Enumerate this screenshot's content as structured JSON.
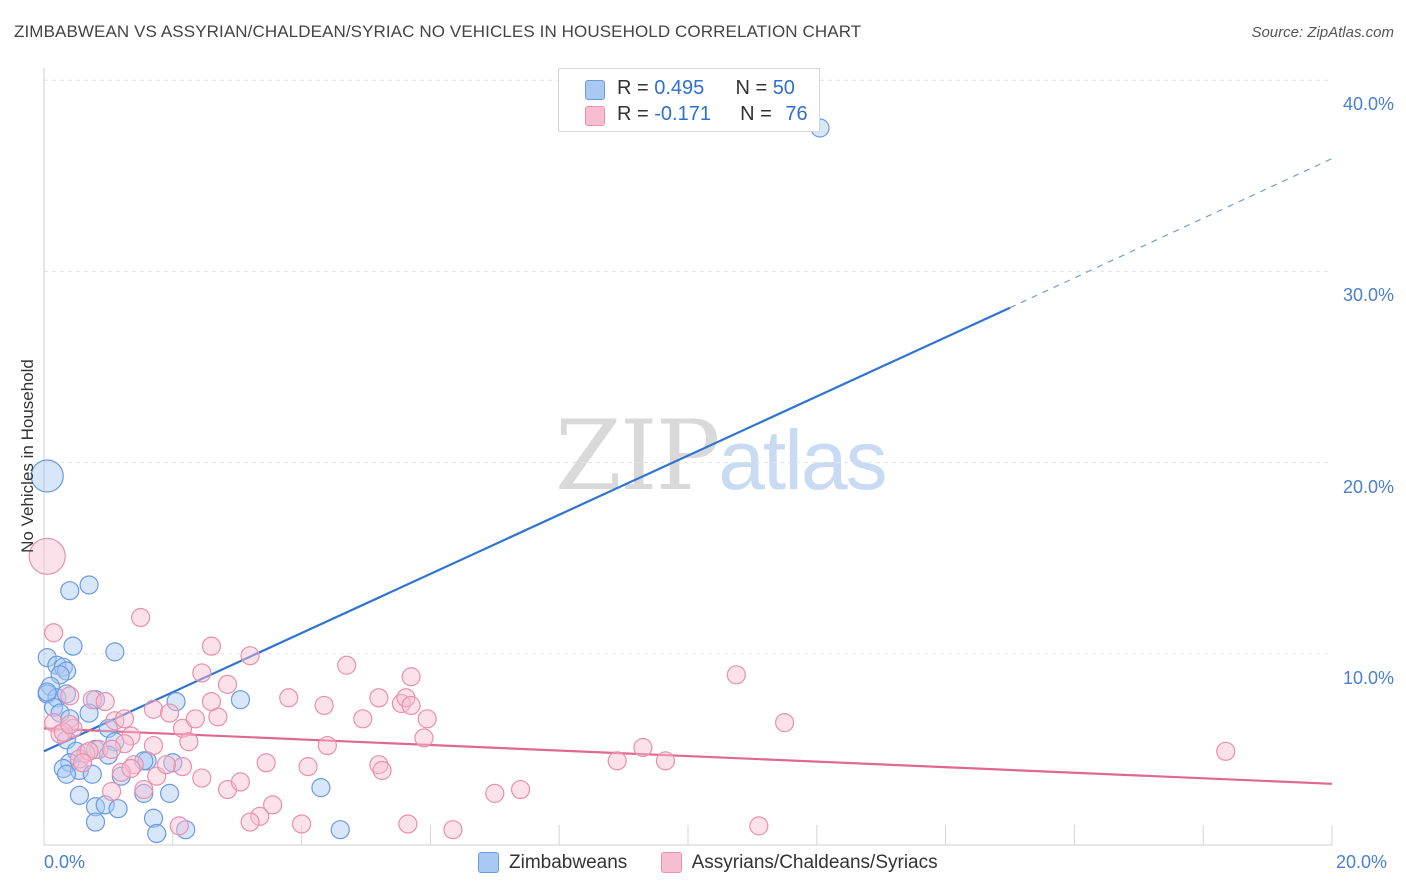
{
  "header": {
    "title": "ZIMBABWEAN VS ASSYRIAN/CHALDEAN/SYRIAC NO VEHICLES IN HOUSEHOLD CORRELATION CHART",
    "source": "Source: ZipAtlas.com"
  },
  "watermark": {
    "zip": "ZIP",
    "atlas": "atlas"
  },
  "legend_top": {
    "rows": [
      {
        "r_label": "R = ",
        "r_value": "0.495",
        "n_label": "N = ",
        "n_value": "50"
      },
      {
        "r_label": "R = ",
        "r_value": "-0.171",
        "n_label": "N = ",
        "n_value": "76"
      }
    ]
  },
  "legend_bottom": {
    "items": [
      "Zimbabweans",
      "Assyrians/Chaldeans/Syriacs"
    ]
  },
  "colors": {
    "blue_fill": "#a9c8f2",
    "blue_stroke": "#6a9be0",
    "blue_line": "#2f74d0",
    "pink_fill": "#f6bfd1",
    "pink_stroke": "#ea8fae",
    "pink_line": "#e0688f",
    "grid": "#e3e3e3",
    "tick_label": "#4a7fd0"
  },
  "chart_data": {
    "type": "scatter",
    "title": "ZIMBABWEAN VS ASSYRIAN/CHALDEAN/SYRIAC NO VEHICLES IN HOUSEHOLD CORRELATION CHART",
    "xlabel": "",
    "ylabel": "No Vehicles in Household",
    "xlim": [
      0,
      20
    ],
    "ylim": [
      0,
      40
    ],
    "x_tick_labels": [
      "0.0%",
      "20.0%"
    ],
    "y_tick_labels": [
      "10.0%",
      "20.0%",
      "30.0%",
      "40.0%"
    ],
    "y_ticks": [
      10,
      20,
      30,
      40
    ],
    "grid": true,
    "legend": "top-center",
    "series": [
      {
        "name": "Zimbabweans",
        "color": "blue",
        "r": 0.495,
        "n": 50,
        "trend": {
          "x0": 0,
          "y0": 4.9,
          "x1": 15.0,
          "y1": 28.1,
          "dashed_to_x": 20.0,
          "dashed_to_y": 35.9
        },
        "points": [
          [
            0.05,
            19.3,
            16
          ],
          [
            0.7,
            13.6,
            9
          ],
          [
            0.4,
            13.3,
            9
          ],
          [
            0.45,
            10.4,
            9
          ],
          [
            1.1,
            10.1,
            9
          ],
          [
            0.05,
            9.8,
            9
          ],
          [
            0.2,
            9.4,
            9
          ],
          [
            0.3,
            9.3,
            9
          ],
          [
            0.35,
            9.1,
            9
          ],
          [
            0.25,
            8.9,
            9
          ],
          [
            0.1,
            8.3,
            9
          ],
          [
            0.05,
            7.9,
            9
          ],
          [
            0.2,
            7.7,
            9
          ],
          [
            0.35,
            7.9,
            9
          ],
          [
            0.8,
            7.6,
            9
          ],
          [
            2.05,
            7.5,
            9
          ],
          [
            3.05,
            7.6,
            9
          ],
          [
            0.15,
            7.2,
            9
          ],
          [
            0.25,
            6.9,
            9
          ],
          [
            0.7,
            6.9,
            9
          ],
          [
            0.4,
            6.6,
            9
          ],
          [
            1.0,
            6.1,
            9
          ],
          [
            0.35,
            5.5,
            9
          ],
          [
            1.1,
            5.4,
            9
          ],
          [
            0.8,
            5.0,
            9
          ],
          [
            0.5,
            4.9,
            9
          ],
          [
            1.0,
            4.7,
            9
          ],
          [
            1.6,
            4.4,
            9
          ],
          [
            2.0,
            4.3,
            9
          ],
          [
            0.4,
            4.3,
            9
          ],
          [
            0.3,
            4.0,
            9
          ],
          [
            0.55,
            3.9,
            9
          ],
          [
            0.75,
            3.7,
            9
          ],
          [
            1.2,
            3.6,
            9
          ],
          [
            0.35,
            3.7,
            9
          ],
          [
            4.3,
            3.0,
            9
          ],
          [
            1.55,
            2.7,
            9
          ],
          [
            1.95,
            2.7,
            9
          ],
          [
            0.55,
            2.6,
            9
          ],
          [
            0.8,
            2.0,
            9
          ],
          [
            0.95,
            2.1,
            9
          ],
          [
            1.15,
            1.9,
            9
          ],
          [
            0.8,
            1.2,
            9
          ],
          [
            1.7,
            1.4,
            9
          ],
          [
            1.75,
            0.6,
            9
          ],
          [
            2.2,
            0.8,
            9
          ],
          [
            4.6,
            0.8,
            9
          ],
          [
            0.05,
            8.0,
            9
          ],
          [
            1.55,
            4.4,
            9
          ],
          [
            12.05,
            37.5,
            9
          ]
        ]
      },
      {
        "name": "Assyrians/Chaldeans/Syriacs",
        "color": "pink",
        "r": -0.171,
        "n": 76,
        "trend": {
          "x0": 0,
          "y0": 6.1,
          "x1": 20.0,
          "y1": 3.2
        },
        "points": [
          [
            0.05,
            15.1,
            18
          ],
          [
            0.15,
            11.1,
            9
          ],
          [
            1.5,
            11.9,
            9
          ],
          [
            2.6,
            10.4,
            9
          ],
          [
            3.2,
            9.9,
            9
          ],
          [
            4.7,
            9.4,
            9
          ],
          [
            2.45,
            9.0,
            9
          ],
          [
            5.7,
            8.8,
            9
          ],
          [
            10.75,
            8.9,
            9
          ],
          [
            2.85,
            8.4,
            9
          ],
          [
            0.4,
            7.8,
            9
          ],
          [
            0.75,
            7.6,
            9
          ],
          [
            1.1,
            6.5,
            9
          ],
          [
            1.7,
            7.1,
            9
          ],
          [
            1.95,
            6.9,
            9
          ],
          [
            3.8,
            7.7,
            9
          ],
          [
            4.35,
            7.3,
            9
          ],
          [
            5.2,
            7.7,
            9
          ],
          [
            5.55,
            7.4,
            9
          ],
          [
            5.62,
            7.7,
            9
          ],
          [
            0.15,
            6.4,
            9
          ],
          [
            0.45,
            6.1,
            9
          ],
          [
            0.25,
            5.8,
            9
          ],
          [
            1.35,
            5.7,
            9
          ],
          [
            1.25,
            6.6,
            9
          ],
          [
            2.15,
            6.1,
            9
          ],
          [
            2.25,
            5.4,
            9
          ],
          [
            2.7,
            6.7,
            9
          ],
          [
            4.95,
            6.6,
            9
          ],
          [
            5.95,
            6.6,
            9
          ],
          [
            11.5,
            6.4,
            9
          ],
          [
            5.9,
            5.6,
            9
          ],
          [
            1.7,
            5.2,
            9
          ],
          [
            1.25,
            5.3,
            9
          ],
          [
            0.85,
            5.0,
            9
          ],
          [
            0.65,
            4.8,
            9
          ],
          [
            0.55,
            4.5,
            9
          ],
          [
            0.7,
            4.9,
            9
          ],
          [
            1.05,
            5.0,
            9
          ],
          [
            4.4,
            5.2,
            9
          ],
          [
            9.3,
            5.1,
            9
          ],
          [
            18.35,
            4.9,
            9
          ],
          [
            8.9,
            4.4,
            9
          ],
          [
            9.65,
            4.4,
            9
          ],
          [
            3.45,
            4.3,
            9
          ],
          [
            4.1,
            4.1,
            9
          ],
          [
            5.2,
            4.2,
            9
          ],
          [
            5.25,
            3.9,
            9
          ],
          [
            1.4,
            4.2,
            9
          ],
          [
            1.2,
            3.8,
            9
          ],
          [
            1.75,
            3.6,
            9
          ],
          [
            2.45,
            3.5,
            9
          ],
          [
            1.55,
            2.9,
            9
          ],
          [
            2.85,
            2.9,
            9
          ],
          [
            1.05,
            2.8,
            9
          ],
          [
            7.0,
            2.7,
            9
          ],
          [
            7.4,
            2.9,
            9
          ],
          [
            3.55,
            2.1,
            9
          ],
          [
            3.35,
            1.5,
            9
          ],
          [
            3.2,
            1.2,
            9
          ],
          [
            4.0,
            1.1,
            9
          ],
          [
            5.65,
            1.1,
            9
          ],
          [
            6.35,
            0.8,
            9
          ],
          [
            11.1,
            1.0,
            9
          ],
          [
            2.1,
            1.0,
            9
          ],
          [
            0.3,
            5.9,
            9
          ],
          [
            0.95,
            7.5,
            9
          ],
          [
            0.6,
            4.3,
            9
          ],
          [
            2.15,
            4.1,
            9
          ],
          [
            3.05,
            3.3,
            9
          ],
          [
            1.35,
            4.0,
            9
          ],
          [
            0.4,
            6.3,
            9
          ],
          [
            2.6,
            7.5,
            9
          ],
          [
            5.7,
            7.3,
            9
          ],
          [
            1.9,
            4.2,
            9
          ],
          [
            2.35,
            6.6,
            9
          ]
        ]
      }
    ]
  }
}
